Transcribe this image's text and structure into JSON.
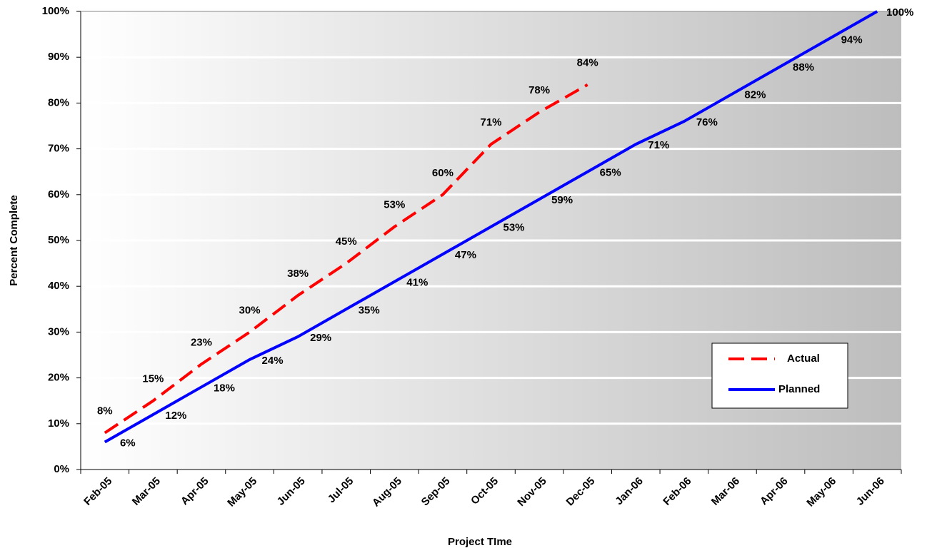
{
  "chart_data": {
    "type": "line",
    "x_label": "Project TIme",
    "y_label": "Percent Complete",
    "categories": [
      "Feb-05",
      "Mar-05",
      "Apr-05",
      "May-05",
      "Jun-05",
      "Jul-05",
      "Aug-05",
      "Sep-05",
      "Oct-05",
      "Nov-05",
      "Dec-05",
      "Jan-06",
      "Feb-06",
      "Mar-06",
      "Apr-06",
      "May-06",
      "Jun-06"
    ],
    "series": [
      {
        "name": "Actual",
        "color": "#ff0000",
        "dashed": true,
        "values": [
          8,
          15,
          23,
          30,
          38,
          45,
          53,
          60,
          71,
          78,
          84,
          null,
          null,
          null,
          null,
          null,
          null
        ],
        "value_labels": [
          "8%",
          "15%",
          "23%",
          "30%",
          "38%",
          "45%",
          "53%",
          "60%",
          "71%",
          "78%",
          "84%",
          null,
          null,
          null,
          null,
          null,
          null
        ]
      },
      {
        "name": "Planned",
        "color": "#0000ff",
        "dashed": false,
        "values": [
          6,
          12,
          18,
          24,
          29,
          35,
          41,
          47,
          53,
          59,
          65,
          71,
          76,
          82,
          88,
          94,
          100
        ],
        "value_labels": [
          "6%",
          "12%",
          "18%",
          "24%",
          "29%",
          "35%",
          "41%",
          "47%",
          "53%",
          "59%",
          "65%",
          "71%",
          "76%",
          "82%",
          "88%",
          "94%",
          "100%"
        ]
      }
    ],
    "ylim": [
      0,
      100
    ],
    "yticks": [
      {
        "value": 0,
        "label": "0%"
      },
      {
        "value": 10,
        "label": "10%"
      },
      {
        "value": 20,
        "label": "20%"
      },
      {
        "value": 30,
        "label": "30%"
      },
      {
        "value": 40,
        "label": "40%"
      },
      {
        "value": 50,
        "label": "50%"
      },
      {
        "value": 60,
        "label": "60%"
      },
      {
        "value": 70,
        "label": "70%"
      },
      {
        "value": 80,
        "label": "80%"
      },
      {
        "value": 90,
        "label": "90%"
      },
      {
        "value": 100,
        "label": "100%"
      }
    ],
    "grid": true,
    "legend": "lower-right"
  }
}
